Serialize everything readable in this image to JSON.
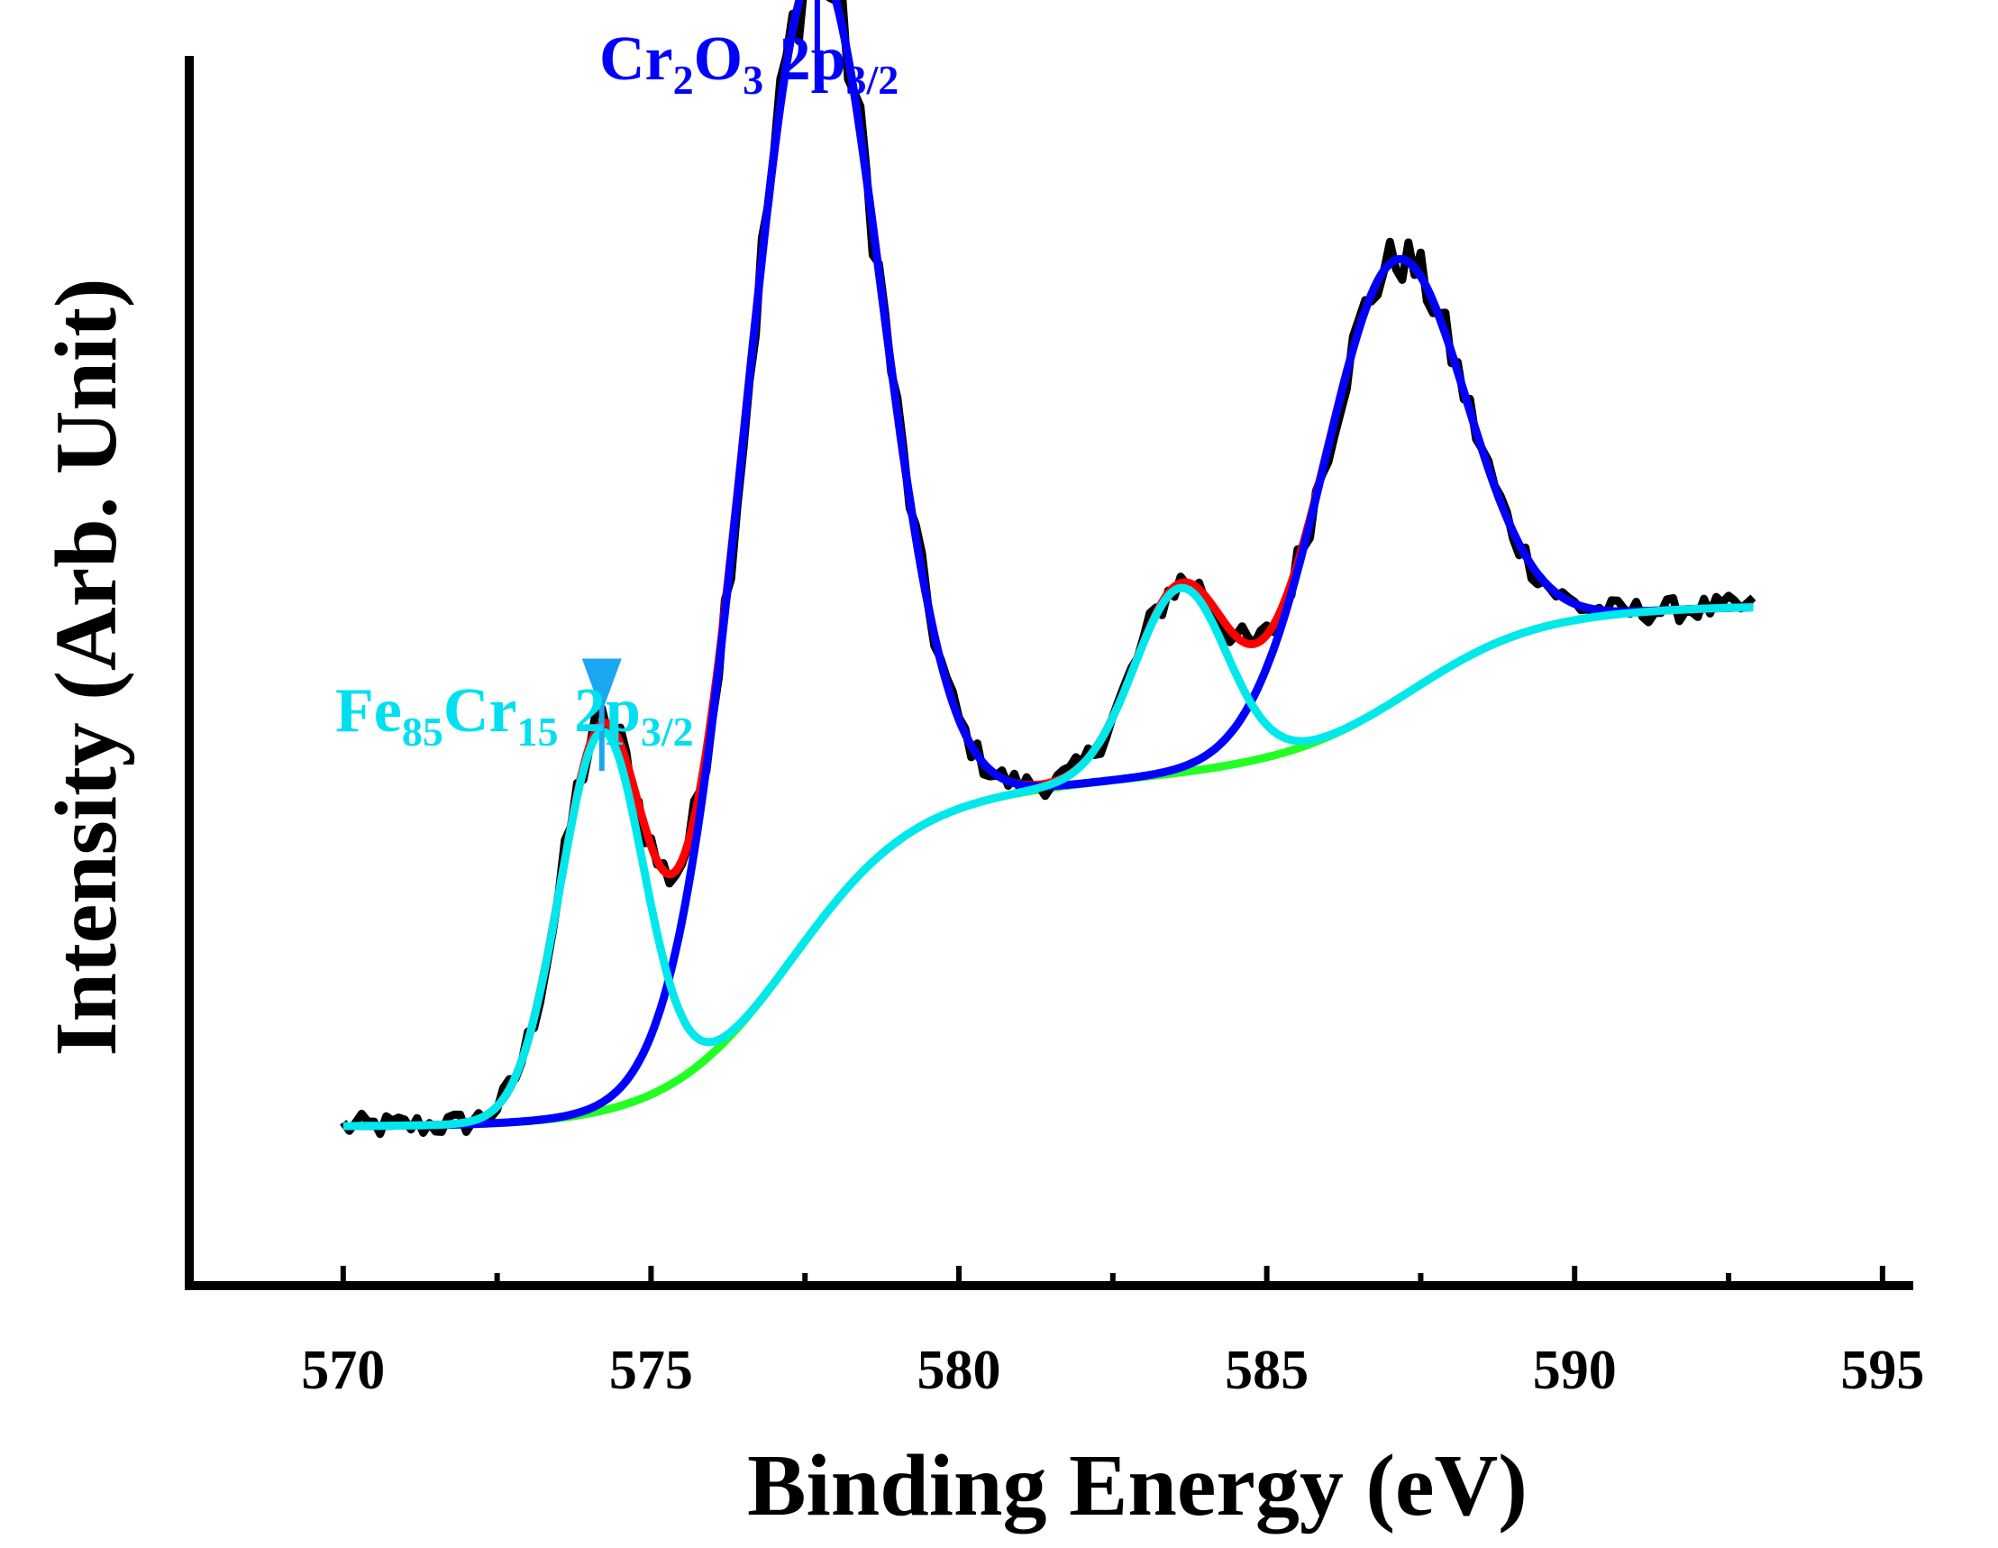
{
  "chart_data": {
    "type": "line",
    "title": "",
    "xlabel": "Binding Energy (eV)",
    "ylabel": "Intensity (Arb. Unit)",
    "xlim": [
      567.5,
      595.5
    ],
    "ylim": [
      0,
      1.2
    ],
    "x_ticks": [
      570,
      575,
      580,
      585,
      590,
      595
    ],
    "x_minor_ticks": [
      572.5,
      577.5,
      582.5,
      587.5,
      592.5
    ],
    "grid": false,
    "colors": {
      "experimental": "#000000",
      "fit_envelope": "#ff0000",
      "cr2o3": "#0000ff",
      "fecr": "#00e8ec",
      "background": "#22ff22",
      "cr2o3_annotation": "#0000ff",
      "fecr_annotation": "#00e0f0",
      "fecr_arrow": "#1aa7f0"
    },
    "series_names": [
      "experimental",
      "fit_envelope",
      "cr2o3_2p3/2",
      "fe85cr15_2p3/2",
      "background"
    ],
    "data_range": [
      570,
      592.9
    ],
    "background_model": {
      "y_start": 0.155,
      "steps": [
        {
          "center": 577.3,
          "width": 1.0,
          "height": 0.32
        },
        {
          "center": 584.0,
          "width": 3.0,
          "height": 0.05
        },
        {
          "center": 587.4,
          "width": 1.0,
          "height": 0.14
        }
      ]
    },
    "peaks": {
      "cr2o3": [
        {
          "center": 577.6,
          "amplitude": 0.94,
          "sigma": 1.1
        },
        {
          "center": 587.05,
          "amplitude": 0.43,
          "sigma": 1.15
        }
      ],
      "fecr": [
        {
          "center": 574.2,
          "amplitude": 0.37,
          "sigma": 0.68
        },
        {
          "center": 583.6,
          "amplitude": 0.18,
          "sigma": 0.75
        }
      ]
    },
    "annotations": [
      {
        "text_main": "Cr",
        "sub1": "2",
        "text_mid": "O",
        "sub2": "3",
        "text_tail": " 2p",
        "sub3": "3/2",
        "x": 577.7
      },
      {
        "text_main": "Fe",
        "sub1": "85",
        "text_mid": "Cr",
        "sub2": "15",
        "text_tail": " 2p",
        "sub3": "3/2",
        "x": 574.2
      }
    ]
  }
}
